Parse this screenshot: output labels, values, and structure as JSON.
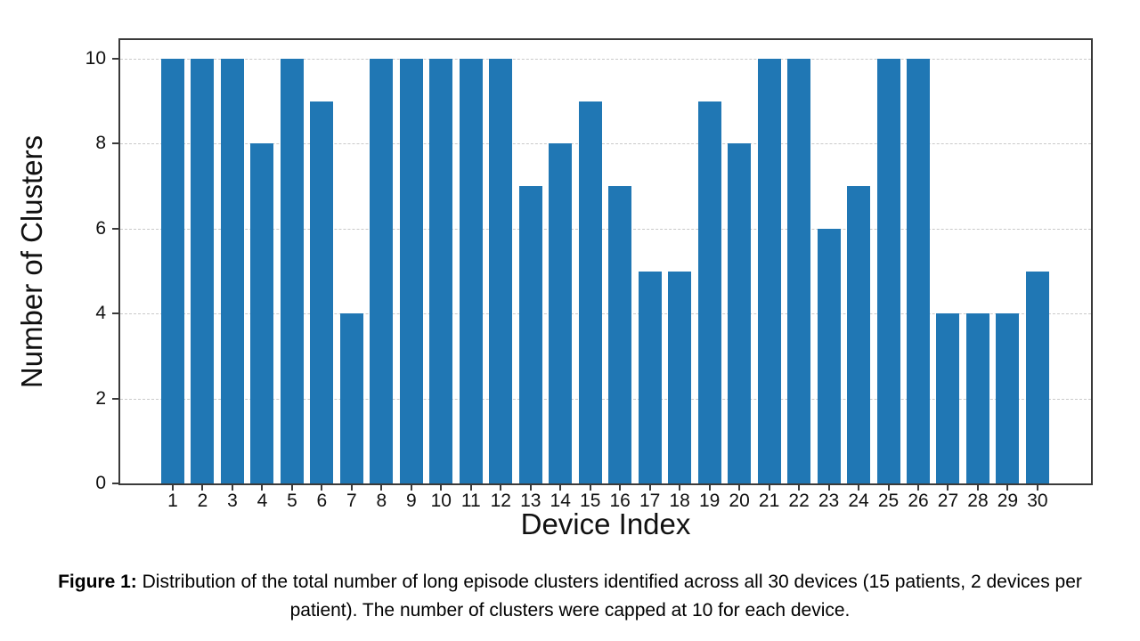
{
  "chart_data": {
    "type": "bar",
    "title": "",
    "xlabel": "Device Index",
    "ylabel": "Number of Clusters",
    "categories": [
      "1",
      "2",
      "3",
      "4",
      "5",
      "6",
      "7",
      "8",
      "9",
      "10",
      "11",
      "12",
      "13",
      "14",
      "15",
      "16",
      "17",
      "18",
      "19",
      "20",
      "21",
      "22",
      "23",
      "24",
      "25",
      "26",
      "27",
      "28",
      "29",
      "30"
    ],
    "values": [
      10,
      10,
      10,
      8,
      10,
      9,
      4,
      10,
      10,
      10,
      10,
      10,
      7,
      8,
      9,
      7,
      5,
      5,
      9,
      8,
      10,
      10,
      6,
      7,
      10,
      10,
      4,
      4,
      4,
      5
    ],
    "ylim": [
      0,
      10
    ],
    "yticks": [
      0,
      2,
      4,
      6,
      8,
      10
    ],
    "grid": "horizontal-dashed",
    "legend_position": "none",
    "bar_color": "#2077b4",
    "gridline_color": "#c9c9c9",
    "spine_color": "#3a3a3a",
    "background_color": "#ffffff"
  },
  "figure": {
    "caption_label": "Figure 1:",
    "caption_text": " Distribution of the total number of long episode clusters identified across all 30 devices (15 patients, 2 devices per patient). The number of clusters were capped at 10 for each device."
  }
}
